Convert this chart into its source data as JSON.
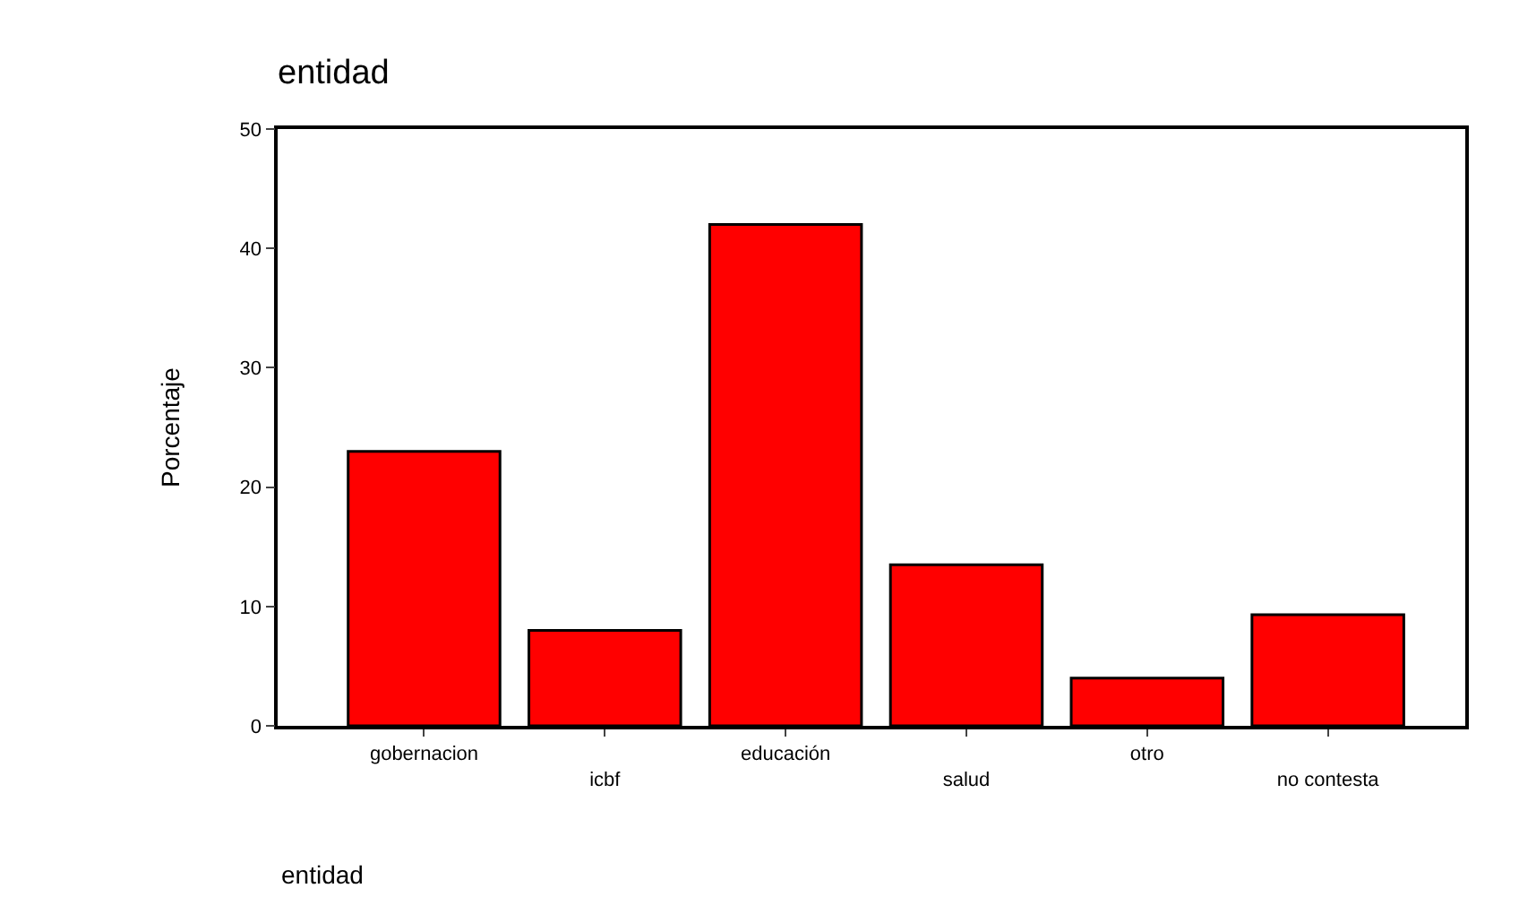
{
  "chart_data": {
    "type": "bar",
    "title": "entidad",
    "xlabel": "entidad",
    "ylabel": "Porcentaje",
    "categories": [
      "gobernacion",
      "icbf",
      "educación",
      "salud",
      "otro",
      "no contesta"
    ],
    "values": [
      23,
      8,
      42,
      13.5,
      4,
      9.3
    ],
    "color": "#ff0000",
    "ylim": [
      0,
      50
    ],
    "yticks": [
      0,
      10,
      20,
      30,
      40,
      50
    ]
  }
}
